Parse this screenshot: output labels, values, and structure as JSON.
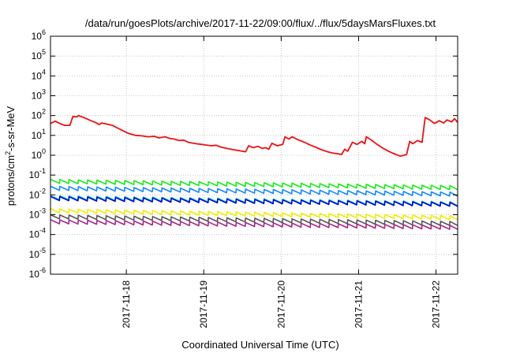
{
  "chart_data": {
    "type": "line",
    "title": "/data/run/goesPlots/archive/2017-11-22/09:00/flux/../flux/5daysMarsFluxes.txt",
    "xlabel": "Coordinated Universal Time (UTC)",
    "ylabel": {
      "pre": "protons/cm",
      "sup": "2",
      "post": "-s-sr-MeV"
    },
    "y_scale": "log",
    "ylim_exp": [
      -6,
      6
    ],
    "y_ticks": [
      {
        "base": "10",
        "exp": "-6"
      },
      {
        "base": "10",
        "exp": "-5"
      },
      {
        "base": "10",
        "exp": "-4"
      },
      {
        "base": "10",
        "exp": "-3"
      },
      {
        "base": "10",
        "exp": "-2"
      },
      {
        "base": "10",
        "exp": "-1"
      },
      {
        "base": "10",
        "exp": "0"
      },
      {
        "base": "10",
        "exp": "1"
      },
      {
        "base": "10",
        "exp": "2"
      },
      {
        "base": "10",
        "exp": "3"
      },
      {
        "base": "10",
        "exp": "4"
      },
      {
        "base": "10",
        "exp": "5"
      },
      {
        "base": "10",
        "exp": "6"
      }
    ],
    "xlim_days": [
      -0.98,
      4.28
    ],
    "x_ticks": [
      {
        "label": "2017-11-18",
        "day": 0
      },
      {
        "label": "2017-11-19",
        "day": 1
      },
      {
        "label": "2017-11-20",
        "day": 2
      },
      {
        "label": "2017-11-21",
        "day": 3
      },
      {
        "label": "2017-11-22",
        "day": 4
      }
    ],
    "grid": true,
    "legend": "none",
    "series": [
      {
        "color": "#ee1111",
        "points": [
          [
            -0.98,
            40
          ],
          [
            -0.92,
            52
          ],
          [
            -0.86,
            40
          ],
          [
            -0.8,
            32
          ],
          [
            -0.73,
            32
          ],
          [
            -0.69,
            90
          ],
          [
            -0.64,
            85
          ],
          [
            -0.62,
            100
          ],
          [
            -0.55,
            80
          ],
          [
            -0.48,
            60
          ],
          [
            -0.4,
            45
          ],
          [
            -0.35,
            35
          ],
          [
            -0.32,
            42
          ],
          [
            -0.25,
            37
          ],
          [
            -0.18,
            32
          ],
          [
            -0.1,
            22
          ],
          [
            -0.03,
            16
          ],
          [
            0.04,
            12
          ],
          [
            0.12,
            10
          ],
          [
            0.2,
            9.5
          ],
          [
            0.28,
            8.5
          ],
          [
            0.36,
            9
          ],
          [
            0.42,
            7.5
          ],
          [
            0.5,
            8.5
          ],
          [
            0.56,
            7
          ],
          [
            0.62,
            6.5
          ],
          [
            0.68,
            5.5
          ],
          [
            0.74,
            5.8
          ],
          [
            0.8,
            4.5
          ],
          [
            0.9,
            3.8
          ],
          [
            1.0,
            3.4
          ],
          [
            1.1,
            3.0
          ],
          [
            1.16,
            3.2
          ],
          [
            1.22,
            2.6
          ],
          [
            1.3,
            2.2
          ],
          [
            1.38,
            1.9
          ],
          [
            1.46,
            1.7
          ],
          [
            1.54,
            1.5
          ],
          [
            1.58,
            3.0
          ],
          [
            1.64,
            2.4
          ],
          [
            1.7,
            2.8
          ],
          [
            1.76,
            2.2
          ],
          [
            1.8,
            2.4
          ],
          [
            1.84,
            2.0
          ],
          [
            1.88,
            4.0
          ],
          [
            1.95,
            3.0
          ],
          [
            2.02,
            3.5
          ],
          [
            2.05,
            8.5
          ],
          [
            2.1,
            6.5
          ],
          [
            2.14,
            8.5
          ],
          [
            2.22,
            6.0
          ],
          [
            2.3,
            4.5
          ],
          [
            2.38,
            3.2
          ],
          [
            2.45,
            2.5
          ],
          [
            2.52,
            1.9
          ],
          [
            2.6,
            1.5
          ],
          [
            2.66,
            1.3
          ],
          [
            2.72,
            1.2
          ],
          [
            2.78,
            1.1
          ],
          [
            2.82,
            2.0
          ],
          [
            2.86,
            1.6
          ],
          [
            2.92,
            4.5
          ],
          [
            2.98,
            3.5
          ],
          [
            3.04,
            5.0
          ],
          [
            3.08,
            3.8
          ],
          [
            3.1,
            8.5
          ],
          [
            3.16,
            6.0
          ],
          [
            3.24,
            3.5
          ],
          [
            3.32,
            2.2
          ],
          [
            3.4,
            1.5
          ],
          [
            3.48,
            1.1
          ],
          [
            3.54,
            0.9
          ],
          [
            3.62,
            1.1
          ],
          [
            3.66,
            5.0
          ],
          [
            3.7,
            3.8
          ],
          [
            3.76,
            5.5
          ],
          [
            3.82,
            4.5
          ],
          [
            3.86,
            80
          ],
          [
            3.92,
            60
          ],
          [
            3.98,
            40
          ],
          [
            4.04,
            55
          ],
          [
            4.1,
            42
          ],
          [
            4.14,
            60
          ],
          [
            4.2,
            48
          ],
          [
            4.24,
            70
          ],
          [
            4.28,
            45
          ]
        ]
      },
      {
        "color": "#11ee11",
        "start": 0.038,
        "end": 0.018,
        "saw": true
      },
      {
        "color": "#1188ff",
        "start": 0.017,
        "end": 0.0085,
        "saw": true
      },
      {
        "color": "#11ddcc",
        "start": 0.0058,
        "end": 0.0028,
        "saw": true
      },
      {
        "color": "#0000dd",
        "start": 0.0052,
        "end": 0.0026,
        "saw": true
      },
      {
        "color": "#eeee00",
        "start": 0.00125,
        "end": 0.00055,
        "saw": true
      },
      {
        "color": "#555555",
        "start": 0.00062,
        "end": 0.00028,
        "saw": true
      },
      {
        "color": "#aa2288",
        "start": 0.00035,
        "end": 0.00018,
        "saw": true
      }
    ]
  }
}
